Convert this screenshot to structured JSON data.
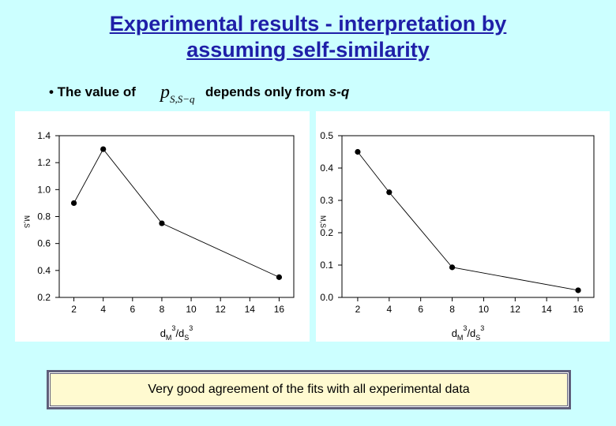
{
  "slide": {
    "title_line1": "Experimental results - interpretation by",
    "title_line2": "assuming self-similarity",
    "bullet_prefix": "• The value of",
    "formula_base": "p",
    "formula_sub": "S,S−q",
    "bullet_suffix_a": "depends only from ",
    "bullet_suffix_var": "s-q",
    "note": "Very good agreement of the fits with all experimental data",
    "colors": {
      "title": "#1f1fa8",
      "background": "#ccffff",
      "note_bg": "#fffad0"
    }
  },
  "chart_data": [
    {
      "type": "line",
      "x": [
        2,
        4,
        8,
        16
      ],
      "y": [
        0.9,
        1.3,
        0.75,
        0.35
      ],
      "xlim": [
        1,
        17
      ],
      "ylim": [
        0.2,
        1.4
      ],
      "xticks": [
        "2",
        "4",
        "6",
        "8",
        "10",
        "12",
        "14",
        "16"
      ],
      "yticks": [
        "0.2",
        "0.4",
        "0.6",
        "0.8",
        "1.0",
        "1.2",
        "1.4"
      ],
      "xlabel": "dM3/dS3",
      "ylabel": "M,S",
      "grid": false
    },
    {
      "type": "line",
      "x": [
        2,
        4,
        8,
        16
      ],
      "y": [
        0.45,
        0.325,
        0.093,
        0.022
      ],
      "xlim": [
        1,
        17
      ],
      "ylim": [
        0.0,
        0.5
      ],
      "xticks": [
        "2",
        "4",
        "6",
        "8",
        "10",
        "12",
        "14",
        "16"
      ],
      "yticks": [
        "0.0",
        "0.1",
        "0.2",
        "0.3",
        "0.4",
        "0.5"
      ],
      "xlabel": "dM3/dS3",
      "ylabel": "M,S",
      "grid": false
    }
  ]
}
